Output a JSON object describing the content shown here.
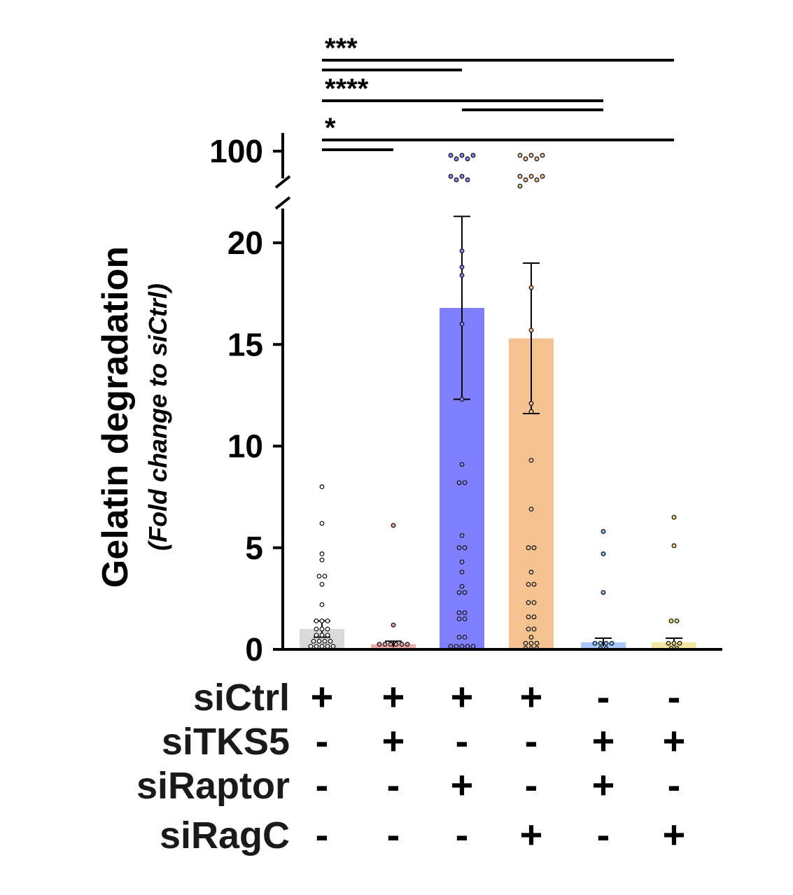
{
  "chart_data": {
    "type": "bar",
    "ylabel": "Gelatin degradation",
    "ylabel_sub": "(Fold change to siCtrl)",
    "y_axis_break": [
      22,
      100
    ],
    "ylim": [
      0,
      100
    ],
    "y_ticks": [
      {
        "value": 0,
        "label": "0"
      },
      {
        "value": 5,
        "label": "5"
      },
      {
        "value": 10,
        "label": "10"
      },
      {
        "value": 15,
        "label": "15"
      },
      {
        "value": 20,
        "label": "20"
      },
      {
        "value": 100,
        "label": "100"
      }
    ],
    "groups": [
      {
        "mean": 1.0,
        "error": 0.4,
        "color": "#d9d9d9",
        "point_fill": "#ffffff",
        "points": [
          8.0,
          6.2,
          4.7,
          4.4,
          3.6,
          3.4,
          3.2,
          2.2,
          1.4,
          1.3,
          1.2,
          1.0,
          0.9,
          0.8,
          0.7,
          0.6,
          0.5,
          0.4,
          0.3,
          0.25,
          0.2,
          0.15,
          0.1,
          0.1,
          0.05,
          0.05
        ]
      },
      {
        "mean": 0.25,
        "error": 0.15,
        "color": "#f2aaaa",
        "point_fill": "#e7a0a0",
        "points": [
          6.1,
          1.2,
          0.25,
          0.15,
          0.1,
          0.1,
          0.05,
          0.05
        ]
      },
      {
        "mean": 16.8,
        "error": 4.5,
        "color": "#8080ff",
        "point_fill": "#8585ff",
        "points": [
          100,
          100,
          100,
          100,
          100,
          100,
          100,
          100,
          100,
          19.6,
          18.8,
          18.4,
          16.0,
          12.3,
          9.1,
          8.2,
          8.1,
          5.6,
          5.0,
          4.8,
          4.3,
          3.8,
          3.1,
          2.8,
          2.7,
          1.8,
          1.8,
          1.5,
          1.3,
          0.6,
          0.5,
          0.15,
          0.1,
          0.05,
          0.05,
          0.05
        ]
      },
      {
        "mean": 15.3,
        "error": 3.7,
        "color": "#f5c292",
        "point_fill": "#f5c292",
        "points": [
          100,
          100,
          100,
          100,
          100,
          100,
          100,
          100,
          100,
          100,
          100,
          17.8,
          15.7,
          12.1,
          11.7,
          9.3,
          6.9,
          5.0,
          4.8,
          3.8,
          3.2,
          3.0,
          2.3,
          2.1,
          1.6,
          1.4,
          1.0,
          0.8,
          0.6,
          0.3,
          0.2,
          0.1,
          0.05,
          0.05,
          0.05
        ]
      },
      {
        "mean": 0.35,
        "error": 0.2,
        "color": "#a6c8ff",
        "point_fill": "#85bdf0",
        "points": [
          5.8,
          4.7,
          2.8,
          0.3,
          0.2,
          0.15,
          0.1,
          0.05,
          0.05
        ]
      },
      {
        "mean": 0.35,
        "error": 0.2,
        "color": "#f5e6a0",
        "point_fill": "#f0d870",
        "points": [
          6.5,
          5.1,
          1.4,
          1.2,
          0.3,
          0.2,
          0.1,
          0.05,
          0.05
        ]
      }
    ],
    "significance": [
      {
        "from": 0,
        "to": 5,
        "label": "***"
      },
      {
        "from": 0,
        "to": 2,
        "label": ""
      },
      {
        "from": 0,
        "to": 4,
        "label": "****"
      },
      {
        "from": 2,
        "to": 4,
        "label": ""
      },
      {
        "from": 0,
        "to": 5,
        "label": "*"
      },
      {
        "from": 0,
        "to": 1,
        "label": ""
      }
    ],
    "conditions": [
      {
        "name": "siCtrl",
        "signs": [
          "+",
          "+",
          "+",
          "+",
          "-",
          "-"
        ]
      },
      {
        "name": "siTKS5",
        "signs": [
          "-",
          "+",
          "-",
          "-",
          "+",
          "+"
        ]
      },
      {
        "name": "siRaptor",
        "signs": [
          "-",
          "-",
          "+",
          "-",
          "+",
          "-"
        ]
      },
      {
        "name": "siRagC",
        "signs": [
          "-",
          "-",
          "-",
          "+",
          "-",
          "+"
        ]
      }
    ]
  }
}
